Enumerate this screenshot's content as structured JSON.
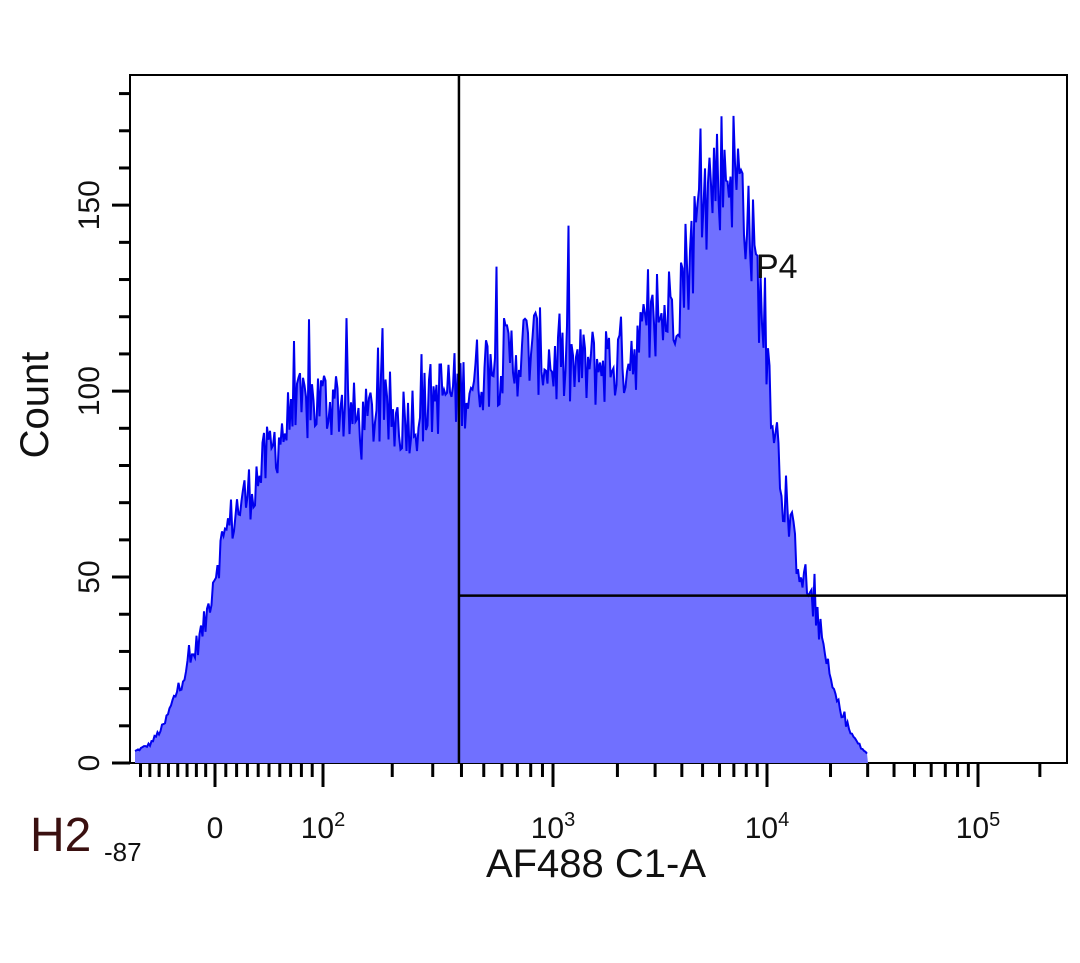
{
  "panel": {
    "label": "H2",
    "offset_label": "-87"
  },
  "chart_data": {
    "type": "histogram",
    "xlabel": "AF488 C1-A",
    "ylabel": "Count",
    "x_scale": "biexponential",
    "xlim": [
      -87,
      262144
    ],
    "ylim": [
      0,
      185
    ],
    "x_ticks": [
      {
        "value": 0,
        "label": "0",
        "sup": ""
      },
      {
        "value": 100,
        "label": "10",
        "sup": "2"
      },
      {
        "value": 1000,
        "label": "10",
        "sup": "3"
      },
      {
        "value": 10000,
        "label": "10",
        "sup": "4"
      },
      {
        "value": 100000,
        "label": "10",
        "sup": "5"
      }
    ],
    "y_ticks": [
      0,
      50,
      100,
      150
    ],
    "fill_color": "#7070ff",
    "line_color": "#0000ee",
    "gate": {
      "name": "P4",
      "x_min": 390,
      "x_max": 262144,
      "y_level": 45
    },
    "series": [
      {
        "x": [
          -87,
          -70,
          -55,
          -40,
          -25,
          -10,
          0,
          10,
          20,
          30,
          40,
          50,
          60,
          70,
          80,
          90,
          100,
          115,
          130,
          150,
          170,
          200,
          230,
          260,
          300,
          350,
          400,
          450,
          500,
          600,
          700,
          800,
          900,
          1000,
          1200,
          1500,
          1800,
          2000,
          2300,
          2600,
          3000,
          3500,
          4000,
          4500,
          5000,
          5500,
          6000,
          7000,
          8000,
          9000,
          10000,
          11000,
          12000,
          14000,
          16000,
          18000,
          20000,
          22000,
          25000,
          28000,
          32000,
          40000
        ],
        "values": [
          3,
          5,
          10,
          20,
          28,
          38,
          52,
          62,
          68,
          72,
          77,
          83,
          88,
          92,
          95,
          97,
          97,
          98,
          94,
          90,
          95,
          92,
          93,
          94,
          98,
          100,
          100,
          103,
          106,
          108,
          110,
          112,
          110,
          107,
          106,
          106,
          108,
          108,
          111,
          113,
          118,
          122,
          130,
          140,
          150,
          156,
          160,
          160,
          150,
          130,
          110,
          90,
          70,
          55,
          45,
          35,
          22,
          15,
          8,
          4,
          1,
          0
        ]
      }
    ]
  }
}
